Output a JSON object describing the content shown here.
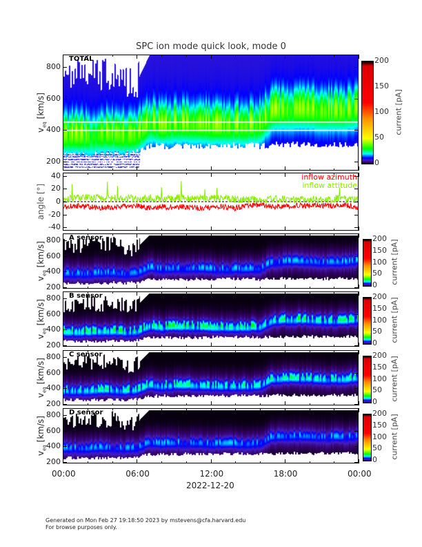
{
  "title": "SPC ion mode quick look, mode 0",
  "ylabel": {
    "main": "v",
    "sub": "eq",
    "units": "[km/s]"
  },
  "angle_ylabel": "angle [°]",
  "colorbar_label": "current [pA]",
  "legend": {
    "azimuth": "inflow azimuth",
    "attitude": "inflow attitude"
  },
  "x_axis": {
    "ticks": [
      "00:00",
      "06:00",
      "12:00",
      "18:00",
      "00:00"
    ],
    "date": "2022-12-20"
  },
  "footer": [
    "Generated on Mon Feb 27 19:18:50 2023 by mstevens@cfa.harvard.edu",
    "For browse purposes only."
  ],
  "colors": {
    "azimuth": "#ff0000",
    "attitude": "#88ee00",
    "reference_line": "#ffffff"
  },
  "chart_data": [
    {
      "type": "heatmap",
      "panel": "TOTAL",
      "label": "TOTAL",
      "x_hours": [
        0,
        1,
        2,
        3,
        4,
        5,
        6,
        7,
        8,
        9,
        10,
        11,
        12,
        13,
        14,
        15,
        16,
        17,
        18,
        19,
        20,
        21,
        22,
        23,
        24
      ],
      "ylim": [
        143,
        879
      ],
      "yticks": [
        "200",
        "400",
        "600",
        "800"
      ],
      "ytick_values": [
        200,
        400,
        600,
        800
      ],
      "colorbar": {
        "range": [
          0,
          200
        ],
        "ticks": [
          "0",
          "50",
          "100",
          "150",
          "200"
        ],
        "tick_values": [
          0,
          50,
          100,
          150,
          200
        ]
      },
      "reference_lines_kms": [
        400,
        455
      ],
      "lower_edge_kms": [
        240,
        240,
        235,
        240,
        245,
        240,
        250,
        290,
        290,
        285,
        290,
        290,
        290,
        295,
        295,
        295,
        290,
        300,
        300,
        300,
        300,
        300,
        300,
        300,
        300
      ],
      "peak_kms": [
        370,
        370,
        370,
        380,
        380,
        370,
        380,
        450,
        430,
        440,
        440,
        440,
        430,
        430,
        430,
        430,
        440,
        520,
        530,
        530,
        530,
        520,
        520,
        520,
        540
      ],
      "upper_edge_kms": [
        720,
        740,
        760,
        740,
        760,
        700,
        720,
        880,
        880,
        880,
        880,
        880,
        880,
        880,
        880,
        880,
        880,
        880,
        880,
        880,
        880,
        880,
        880,
        880,
        880
      ],
      "peak_current_pA": 30,
      "background_current_pA": 9
    },
    {
      "type": "line",
      "panel": "angle",
      "ylim": [
        -45,
        45
      ],
      "yticks": [
        "-40",
        "-20",
        "0",
        "20",
        "40"
      ],
      "ytick_values": [
        -40,
        -20,
        0,
        20,
        40
      ],
      "x_hours": [
        0,
        1,
        2,
        3,
        4,
        5,
        6,
        7,
        8,
        9,
        10,
        11,
        12,
        13,
        14,
        15,
        16,
        17,
        18,
        19,
        20,
        21,
        22,
        23,
        24
      ],
      "series": [
        {
          "name": "inflow azimuth",
          "values": [
            -8,
            -7,
            -8,
            -10,
            -9,
            -8,
            -6,
            -10,
            -8,
            -9,
            -8,
            -10,
            -9,
            -8,
            -10,
            -6,
            -5,
            -8,
            -7,
            -6,
            -6,
            -6,
            -6,
            -5,
            -10
          ]
        },
        {
          "name": "inflow attitude",
          "values": [
            5,
            7,
            6,
            6,
            5,
            6,
            4,
            6,
            5,
            6,
            6,
            5,
            5,
            5,
            4,
            3,
            3,
            4,
            4,
            3,
            4,
            3,
            5,
            4,
            3
          ]
        }
      ]
    },
    {
      "type": "heatmap",
      "panel": "A",
      "label": "A sensor",
      "ylim": [
        180,
        890
      ],
      "yticks": [
        "200",
        "400",
        "600",
        "800"
      ],
      "ytick_values": [
        200,
        400,
        600,
        800
      ],
      "colorbar": {
        "range": [
          0,
          200
        ],
        "ticks": [
          "0",
          "50",
          "100",
          "150",
          "200"
        ],
        "tick_values": [
          0,
          50,
          100,
          150,
          200
        ]
      },
      "peak_current_pA": 12
    },
    {
      "type": "heatmap",
      "panel": "B",
      "label": "B sensor",
      "ylim": [
        180,
        890
      ],
      "yticks": [
        "200",
        "400",
        "600",
        "800"
      ],
      "ytick_values": [
        200,
        400,
        600,
        800
      ],
      "colorbar": {
        "range": [
          0,
          200
        ],
        "ticks": [
          "0",
          "50",
          "100",
          "150",
          "200"
        ],
        "tick_values": [
          0,
          50,
          100,
          150,
          200
        ]
      },
      "peak_current_pA": 22
    },
    {
      "type": "heatmap",
      "panel": "C",
      "label": "C sensor",
      "ylim": [
        180,
        890
      ],
      "yticks": [
        "200",
        "400",
        "600",
        "800"
      ],
      "ytick_values": [
        200,
        400,
        600,
        800
      ],
      "colorbar": {
        "range": [
          0,
          200
        ],
        "ticks": [
          "0",
          "50",
          "100",
          "150",
          "200"
        ],
        "tick_values": [
          0,
          50,
          100,
          150,
          200
        ]
      },
      "peak_current_pA": 20
    },
    {
      "type": "heatmap",
      "panel": "D",
      "label": "D sensor",
      "ylim": [
        180,
        890
      ],
      "yticks": [
        "200",
        "400",
        "600",
        "800"
      ],
      "ytick_values": [
        200,
        400,
        600,
        800
      ],
      "colorbar": {
        "range": [
          0,
          200
        ],
        "ticks": [
          "0",
          "50",
          "100",
          "150",
          "200"
        ],
        "tick_values": [
          0,
          50,
          100,
          150,
          200
        ]
      },
      "peak_current_pA": 12
    }
  ]
}
